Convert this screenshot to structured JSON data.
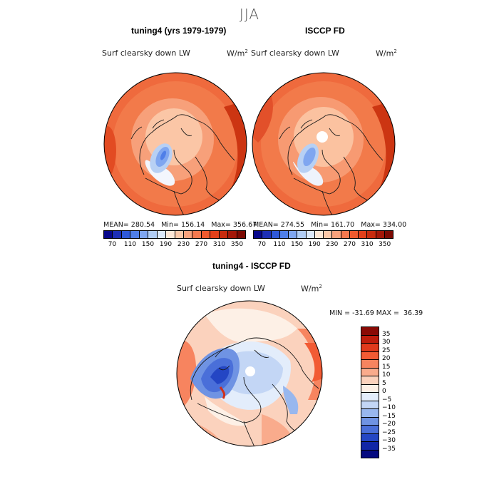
{
  "figure": {
    "suptitle": "JJA",
    "land_color": "#1a1a1a"
  },
  "panels": [
    {
      "title": "tuning4 (yrs 1979-1979)",
      "variable": "Surf clearsky down LW",
      "units": "W/m",
      "units_sup": "2",
      "stats": {
        "mean_label": "MEAN=",
        "mean": "280.54",
        "min_label": "Min=",
        "min": "156.14",
        "max_label": "Max=",
        "max": "356.67"
      },
      "colorbar": {
        "ticks": [
          "70",
          "110",
          "150",
          "190",
          "230",
          "270",
          "310",
          "350"
        ],
        "colors": [
          "#08088a",
          "#1d2fb5",
          "#2f59d8",
          "#4f7fe8",
          "#7fa6f0",
          "#b1cdf5",
          "#dce9fa",
          "#fde7d6",
          "#fbc8a8",
          "#f9a27c",
          "#f5794f",
          "#ef5a2e",
          "#e2401a",
          "#c72b0e",
          "#a31708",
          "#7c0a03"
        ]
      }
    },
    {
      "title": "ISCCP FD",
      "variable": "Surf clearsky down LW",
      "units": "W/m",
      "units_sup": "2",
      "stats": {
        "mean_label": "MEAN=",
        "mean": "274.55",
        "min_label": "Min=",
        "min": "161.70",
        "max_label": "Max=",
        "max": "334.00"
      },
      "colorbar": {
        "ticks": [
          "70",
          "110",
          "150",
          "190",
          "230",
          "270",
          "310",
          "350"
        ],
        "colors": [
          "#08088a",
          "#1d2fb5",
          "#2f59d8",
          "#4f7fe8",
          "#7fa6f0",
          "#b1cdf5",
          "#dce9fa",
          "#fde7d6",
          "#fbc8a8",
          "#f9a27c",
          "#f5794f",
          "#ef5a2e",
          "#e2401a",
          "#c72b0e",
          "#a31708",
          "#7c0a03"
        ]
      }
    },
    {
      "title": "tuning4 - ISCCP FD",
      "variable": "Surf clearsky down LW",
      "units": "W/m",
      "units_sup": "2",
      "stats": {
        "min_label": "MIN =",
        "min": "-31.69",
        "max_label": "MAX =",
        "max": "36.39"
      },
      "colorbar": {
        "ticks": [
          "35",
          "30",
          "25",
          "20",
          "15",
          "10",
          "5",
          "0",
          "−5",
          "−10",
          "−15",
          "−20",
          "−25",
          "−30",
          "−35"
        ],
        "colors": [
          "#8a0a05",
          "#bf1d0c",
          "#e03a1c",
          "#f25b34",
          "#f7845f",
          "#f9ab8c",
          "#fbd2bd",
          "#fdf0e6",
          "#e3edfb",
          "#c3d6f5",
          "#98b7ee",
          "#6f93e3",
          "#4a6fd9",
          "#2446c4",
          "#1126a6",
          "#060a80"
        ]
      }
    }
  ]
}
